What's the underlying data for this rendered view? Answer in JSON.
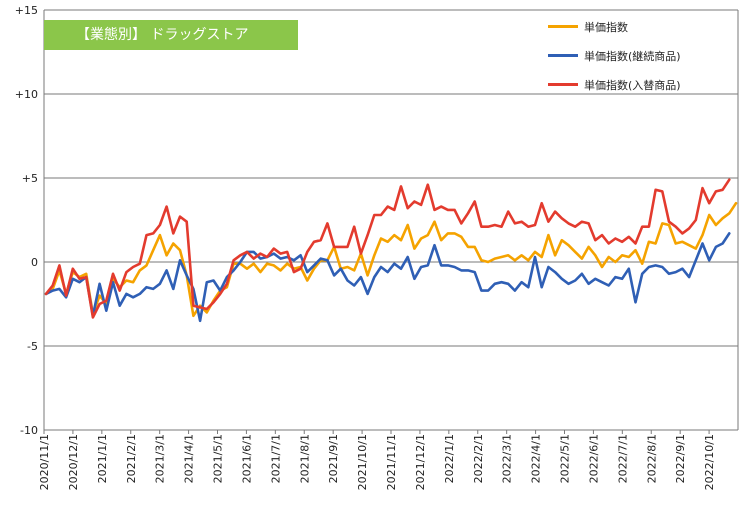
{
  "banner": {
    "label": "【業態別】 ドラッグストア"
  },
  "chart_data": {
    "type": "line",
    "ylim": [
      -10,
      15
    ],
    "y_ticks": [
      {
        "value": 15,
        "label": "+15"
      },
      {
        "value": 10,
        "label": "+10"
      },
      {
        "value": 5,
        "label": "+5"
      },
      {
        "value": 0,
        "label": "0"
      },
      {
        "value": -5,
        "label": "-5"
      },
      {
        "value": -10,
        "label": "-10"
      }
    ],
    "x_tick_labels": [
      "2020/11/1",
      "2020/12/1",
      "2021/1/1",
      "2021/2/1",
      "2021/3/1",
      "2021/4/1",
      "2021/5/1",
      "2021/6/1",
      "2021/7/1",
      "2021/8/1",
      "2021/9/1",
      "2021/10/1",
      "2021/11/1",
      "2021/12/1",
      "2022/1/1",
      "2022/2/1",
      "2022/3/1",
      "2022/4/1",
      "2022/5/1",
      "2022/6/1",
      "2022/7/1",
      "2022/8/1",
      "2022/9/1",
      "2022/10/1"
    ],
    "grid": "horizontal",
    "legend_position": "top-right",
    "series": [
      {
        "name": "単価指数",
        "color": "#f5a300",
        "values": [
          -1.9,
          -1.6,
          -0.5,
          -1.9,
          -0.6,
          -0.9,
          -0.7,
          -3.1,
          -2.0,
          -2.5,
          -1.0,
          -1.5,
          -1.1,
          -1.2,
          -0.5,
          -0.2,
          0.7,
          1.6,
          0.4,
          1.1,
          0.7,
          -0.8,
          -3.2,
          -2.6,
          -3.0,
          -2.3,
          -1.7,
          -1.5,
          -0.1,
          -0.1,
          -0.4,
          -0.1,
          -0.6,
          -0.1,
          -0.2,
          -0.5,
          -0.1,
          -0.4,
          -0.3,
          -1.1,
          -0.4,
          0.1,
          0.1,
          0.9,
          -0.4,
          -0.3,
          -0.5,
          0.5,
          -0.8,
          0.4,
          1.4,
          1.2,
          1.6,
          1.3,
          2.2,
          0.8,
          1.4,
          1.6,
          2.4,
          1.3,
          1.7,
          1.7,
          1.5,
          0.9,
          0.9,
          0.1,
          0.0,
          0.2,
          0.3,
          0.4,
          0.1,
          0.4,
          0.1,
          0.6,
          0.3,
          1.6,
          0.4,
          1.3,
          1.0,
          0.6,
          0.2,
          0.9,
          0.4,
          -0.3,
          0.3,
          0.0,
          0.4,
          0.3,
          0.7,
          -0.1,
          1.2,
          1.1,
          2.3,
          2.2,
          1.1,
          1.2,
          1.0,
          0.8,
          1.6,
          2.8,
          2.2,
          2.6,
          2.9,
          3.5
        ]
      },
      {
        "name": "単価指数(継続商品)",
        "color": "#2f5fb5",
        "values": [
          -1.9,
          -1.7,
          -1.6,
          -2.1,
          -1.0,
          -1.2,
          -0.9,
          -3.2,
          -1.3,
          -2.9,
          -1.2,
          -2.6,
          -1.9,
          -2.1,
          -1.9,
          -1.5,
          -1.6,
          -1.3,
          -0.5,
          -1.6,
          0.1,
          -0.8,
          -1.6,
          -3.5,
          -1.2,
          -1.1,
          -1.7,
          -0.9,
          -0.5,
          0.0,
          0.6,
          0.6,
          0.2,
          0.3,
          0.5,
          0.2,
          0.3,
          0.1,
          0.4,
          -0.6,
          -0.2,
          0.2,
          0.1,
          -0.8,
          -0.4,
          -1.1,
          -1.4,
          -0.9,
          -1.9,
          -0.9,
          -0.3,
          -0.6,
          -0.1,
          -0.4,
          0.3,
          -1.0,
          -0.3,
          -0.2,
          1.0,
          -0.2,
          -0.2,
          -0.3,
          -0.5,
          -0.5,
          -0.6,
          -1.7,
          -1.7,
          -1.3,
          -1.2,
          -1.3,
          -1.7,
          -1.2,
          -1.5,
          0.3,
          -1.5,
          -0.3,
          -0.6,
          -1.0,
          -1.3,
          -1.1,
          -0.7,
          -1.3,
          -1.0,
          -1.2,
          -1.4,
          -0.9,
          -1.0,
          -0.4,
          -2.4,
          -0.7,
          -0.3,
          -0.2,
          -0.3,
          -0.7,
          -0.6,
          -0.4,
          -0.9,
          0.1,
          1.1,
          0.1,
          0.9,
          1.1,
          1.7
        ]
      },
      {
        "name": "単価指数(入替商品)",
        "color": "#e33b2e",
        "values": [
          -1.9,
          -1.4,
          -0.2,
          -2.0,
          -0.4,
          -1.0,
          -0.9,
          -3.3,
          -2.5,
          -2.3,
          -0.7,
          -1.7,
          -0.6,
          -0.3,
          -0.1,
          1.6,
          1.7,
          2.2,
          3.3,
          1.7,
          2.7,
          2.4,
          -2.6,
          -2.7,
          -2.8,
          -2.4,
          -1.9,
          -1.3,
          0.1,
          0.4,
          0.6,
          0.2,
          0.5,
          0.3,
          0.8,
          0.5,
          0.6,
          -0.6,
          -0.4,
          0.6,
          1.2,
          1.3,
          2.3,
          0.9,
          0.9,
          0.9,
          2.1,
          0.5,
          1.6,
          2.8,
          2.8,
          3.3,
          3.1,
          4.5,
          3.2,
          3.6,
          3.4,
          4.6,
          3.1,
          3.3,
          3.1,
          3.1,
          2.3,
          2.9,
          3.6,
          2.1,
          2.1,
          2.2,
          2.1,
          3.0,
          2.3,
          2.4,
          2.1,
          2.2,
          3.5,
          2.4,
          3.0,
          2.6,
          2.3,
          2.1,
          2.4,
          2.3,
          1.3,
          1.6,
          1.1,
          1.4,
          1.2,
          1.5,
          1.1,
          2.1,
          2.1,
          4.3,
          4.2,
          2.4,
          2.1,
          1.7,
          2.0,
          2.5,
          4.4,
          3.5,
          4.2,
          4.3,
          4.9
        ]
      }
    ]
  }
}
